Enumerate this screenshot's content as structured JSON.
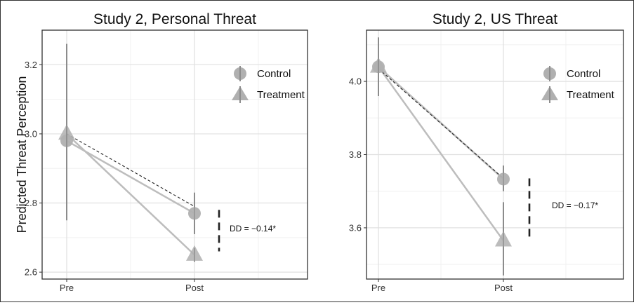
{
  "chart_data": [
    {
      "type": "line",
      "title": "Study 2, Personal Threat",
      "ylabel": "Predicted Threat Perception",
      "xlabel": "",
      "categories": [
        "Pre",
        "Post"
      ],
      "ylim": [
        2.58,
        3.3
      ],
      "yticks": [
        2.6,
        2.8,
        3.0,
        3.2
      ],
      "ytick_labels": [
        "2.6",
        "2.8",
        "3.0",
        "3.2"
      ],
      "grid": true,
      "legend_position": "top-right",
      "series": [
        {
          "name": "Control",
          "marker": "circle",
          "values": [
            2.98,
            2.77
          ],
          "ci_low": [
            2.75,
            2.71
          ],
          "ci_high": [
            3.26,
            2.83
          ]
        },
        {
          "name": "Treatment",
          "marker": "triangle",
          "values": [
            3.0,
            2.65
          ],
          "ci_low": [
            2.75,
            2.63
          ],
          "ci_high": [
            3.26,
            2.67
          ]
        }
      ],
      "counterfactual": {
        "style": "dashed",
        "values": [
          3.0,
          2.79
        ]
      },
      "dd_bracket": {
        "y_from": 2.66,
        "y_to": 2.78
      },
      "annotation": "DD = −0.14*"
    },
    {
      "type": "line",
      "title": "Study 2, US Threat",
      "ylabel": "",
      "xlabel": "",
      "categories": [
        "Pre",
        "Post"
      ],
      "ylim": [
        3.46,
        4.14
      ],
      "yticks": [
        3.6,
        3.8,
        4.0
      ],
      "ytick_labels": [
        "3.6",
        "3.8",
        "4.0"
      ],
      "grid": true,
      "legend_position": "top-right",
      "series": [
        {
          "name": "Control",
          "marker": "circle",
          "values": [
            4.04,
            3.733
          ],
          "ci_low": [
            3.96,
            3.7
          ],
          "ci_high": [
            4.12,
            3.77
          ]
        },
        {
          "name": "Treatment",
          "marker": "triangle",
          "values": [
            4.04,
            3.565
          ],
          "ci_low": [
            3.96,
            3.47
          ],
          "ci_high": [
            4.12,
            3.67
          ]
        }
      ],
      "counterfactual": {
        "style": "dashed",
        "values": [
          4.035,
          3.735
        ]
      },
      "dd_bracket": {
        "y_from": 3.565,
        "y_to": 3.735
      },
      "annotation": "DD = −0.17*"
    }
  ],
  "colors": {
    "line": "#bdbdbd",
    "errorbar": "#8c8c8c",
    "marker": "#b0b0b0",
    "dashed": "#222222",
    "bracket": "#222222",
    "grid_major": "#e0e0e0",
    "grid_minor": "#f0f0f0",
    "panel_border": "#333333"
  }
}
